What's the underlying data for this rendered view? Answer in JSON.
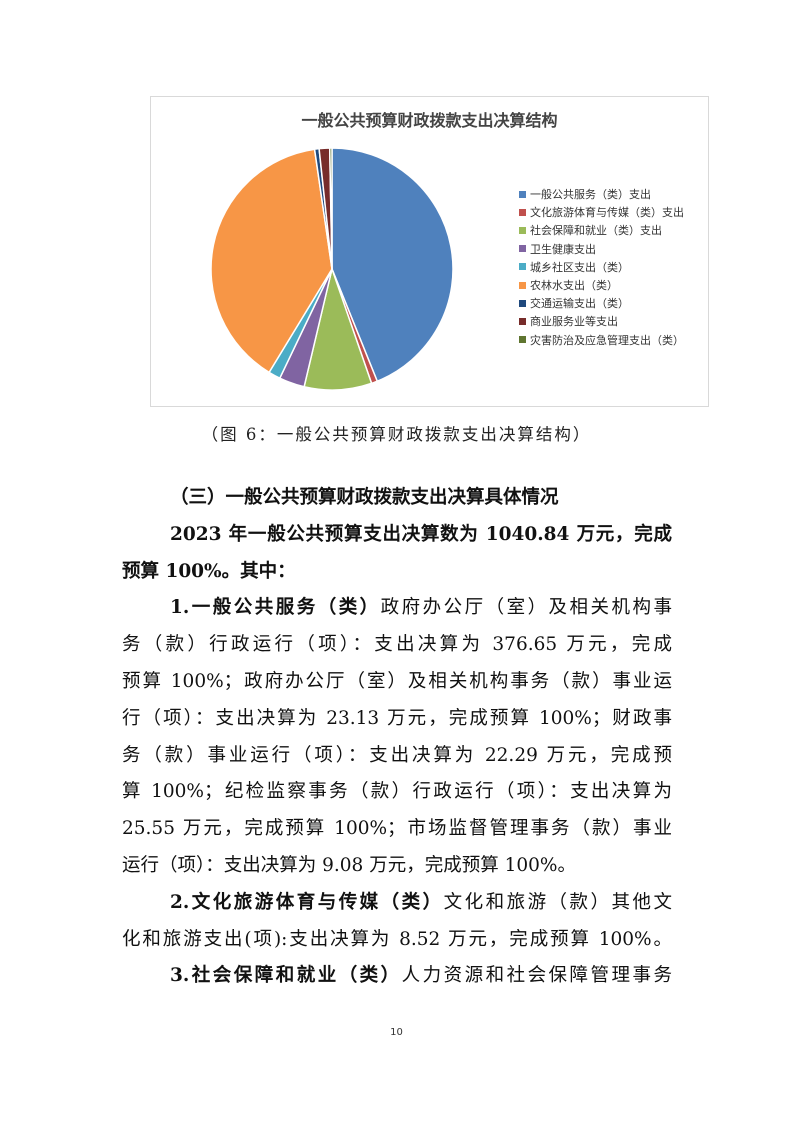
{
  "chart_data": {
    "type": "pie",
    "title": "一般公共预算财政拨款支出决算结构",
    "legend_position": "right",
    "unit": "percent (estimated)",
    "slices": [
      {
        "name": "一般公共服务（类）支出",
        "value": 43.9,
        "color": "#4f81bd"
      },
      {
        "name": "文化旅游体育与传媒（类）支出",
        "value": 0.8,
        "color": "#c0504d"
      },
      {
        "name": "社会保障和就业（类）支出",
        "value": 9.0,
        "color": "#9bbb59"
      },
      {
        "name": "卫生健康支出",
        "value": 3.4,
        "color": "#8064a2"
      },
      {
        "name": "城乡社区支出（类）",
        "value": 1.6,
        "color": "#4bacc6"
      },
      {
        "name": "农林水支出（类）",
        "value": 39.0,
        "color": "#f79646"
      },
      {
        "name": "交通运输支出（类）",
        "value": 0.6,
        "color": "#1f497d"
      },
      {
        "name": "商业服务业等支出",
        "value": 1.4,
        "color": "#772c2a"
      },
      {
        "name": "灾害防治及应急管理支出（类）",
        "value": 0.3,
        "color": "#5f7530"
      }
    ]
  },
  "caption": "（图 6：一般公共预算财政拨款支出决算结构）",
  "lines": [
    {
      "indent": true,
      "last": true,
      "segs": [
        {
          "t": "（三）一般公共预算财政拨款支出决算具体情况",
          "b": true
        }
      ]
    },
    {
      "indent": true,
      "segs": [
        {
          "t": "2023 年一般公共预算支出决算数为 1040.84 万元，完成",
          "b": true
        }
      ]
    },
    {
      "last": true,
      "segs": [
        {
          "t": "预算 100%。其中：",
          "b": true
        }
      ]
    },
    {
      "indent": true,
      "segs": [
        {
          "t": "1.一般公共服务（类）",
          "b": true
        },
        {
          "t": "政府办公厅（室）及相关机构事"
        }
      ]
    },
    {
      "segs": [
        {
          "t": "务（款）行政运行（项）：支出决算为 376.65 万元，完成"
        }
      ]
    },
    {
      "segs": [
        {
          "t": "预算 100%；政府办公厅（室）及相关机构事务（款）事业运"
        }
      ]
    },
    {
      "segs": [
        {
          "t": "行（项）：支出决算为 23.13 万元，完成预算 100%；财政事"
        }
      ]
    },
    {
      "segs": [
        {
          "t": "务（款）事业运行（项）：支出决算为 22.29 万元，完成预"
        }
      ]
    },
    {
      "segs": [
        {
          "t": "算 100%；纪检监察事务（款）行政运行（项）：支出决算为"
        }
      ]
    },
    {
      "segs": [
        {
          "t": "25.55 万元，完成预算 100%；市场监督管理事务（款）事业"
        }
      ]
    },
    {
      "last": true,
      "segs": [
        {
          "t": "运行（项）：支出决算为 9.08 万元，完成预算 100%。"
        }
      ]
    },
    {
      "indent": true,
      "segs": [
        {
          "t": "2.文化旅游体育与传媒（类）",
          "b": true
        },
        {
          "t": "文化和旅游（款）其他文"
        }
      ]
    },
    {
      "segs": [
        {
          "t": "化和旅游支出(项):支出决算为 8.52 万元，完成预算 100%。"
        }
      ]
    },
    {
      "indent": true,
      "segs": [
        {
          "t": "3.社会保障和就业（类）",
          "b": true
        },
        {
          "t": "人力资源和社会保障管理事务"
        }
      ]
    }
  ],
  "page_number": "10"
}
